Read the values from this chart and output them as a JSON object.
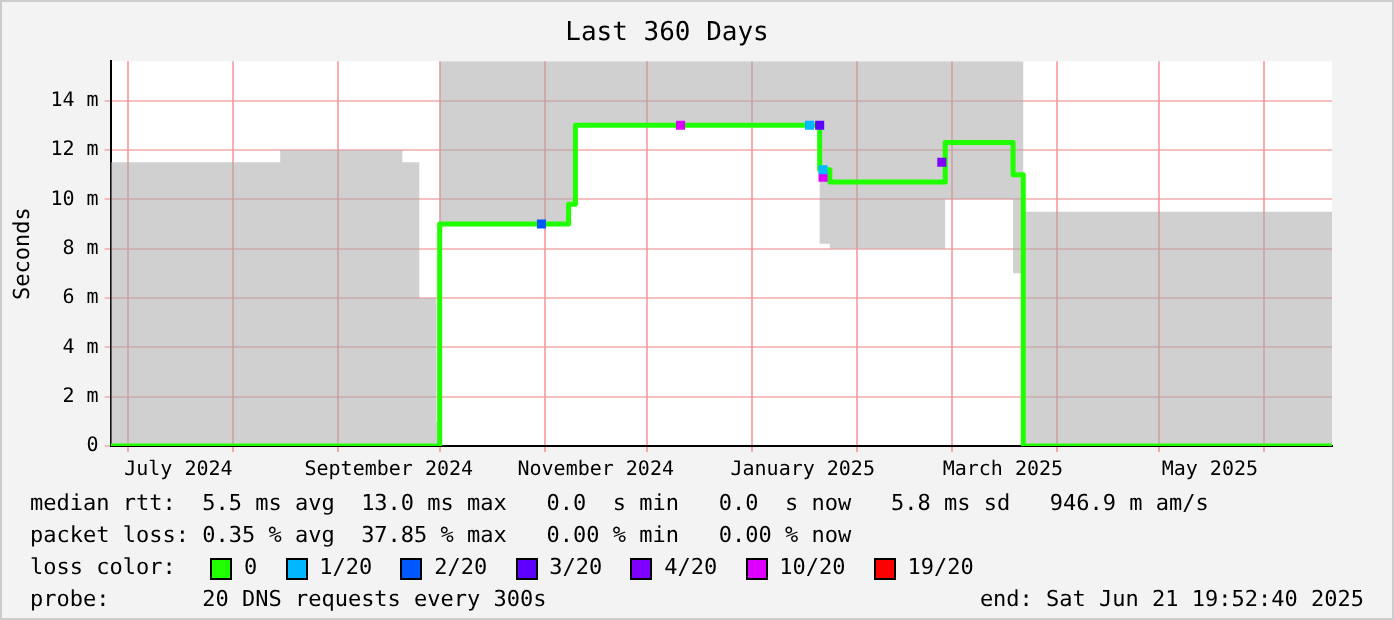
{
  "chart_data": {
    "type": "step",
    "title": "Last 360 Days",
    "ylabel": "Seconds",
    "xlim": [
      "2024-06-26",
      "2025-06-21"
    ],
    "xticks": [
      {
        "value": "2024-07-01",
        "label": null
      },
      {
        "value": "2024-07-16",
        "label": "July 2024"
      },
      {
        "value": "2024-08-01",
        "label": null
      },
      {
        "value": "2024-09-01",
        "label": null
      },
      {
        "value": "2024-09-16",
        "label": "September 2024"
      },
      {
        "value": "2024-10-01",
        "label": null
      },
      {
        "value": "2024-11-01",
        "label": null
      },
      {
        "value": "2024-11-16",
        "label": "November 2024"
      },
      {
        "value": "2024-12-01",
        "label": null
      },
      {
        "value": "2025-01-01",
        "label": null
      },
      {
        "value": "2025-01-16",
        "label": "January 2025"
      },
      {
        "value": "2025-02-01",
        "label": null
      },
      {
        "value": "2025-03-01",
        "label": null
      },
      {
        "value": "2025-03-16",
        "label": "March 2025"
      },
      {
        "value": "2025-04-01",
        "label": null
      },
      {
        "value": "2025-05-01",
        "label": null
      },
      {
        "value": "2025-05-16",
        "label": "May 2025"
      },
      {
        "value": "2025-06-01",
        "label": null
      }
    ],
    "ylim": [
      0,
      15.6
    ],
    "yticks": [
      0,
      {
        "value": 2,
        "label": "2 m"
      },
      {
        "value": 4,
        "label": "4 m"
      },
      {
        "value": 6,
        "label": "6 m"
      },
      {
        "value": 8,
        "label": "8 m"
      },
      {
        "value": 10,
        "label": "10 m"
      },
      {
        "value": 12,
        "label": "12 m"
      },
      {
        "value": 14,
        "label": "14 m"
      }
    ],
    "grid": true,
    "legend": "bottom",
    "legend_title": "loss color:",
    "series": [
      {
        "name": "0",
        "color": "#20ff00",
        "x": [
          "2024-06-26",
          "2024-08-15",
          "2024-09-20",
          "2024-09-25",
          "2024-09-30",
          "2024-10-01",
          "2024-11-08",
          "2024-11-10",
          "2025-01-21",
          "2025-01-24",
          "2025-02-27",
          "2025-03-19",
          "2025-03-22",
          "2025-06-21"
        ],
        "values": [
          0,
          0,
          0,
          0,
          0,
          9,
          9.8,
          13,
          11.2,
          10.7,
          12.3,
          11,
          0,
          0
        ],
        "lower": [
          0,
          0,
          0,
          0,
          0,
          9,
          9.8,
          13,
          8.2,
          8,
          10,
          7,
          0,
          0
        ],
        "upper": [
          11.5,
          12,
          11.5,
          6,
          1,
          15.6,
          15.6,
          15.6,
          15.6,
          15.6,
          15.6,
          15.6,
          9.5,
          9.5
        ]
      },
      {
        "name": "1/20",
        "type": "scatter",
        "color": "#00b8ff",
        "x": [
          "2025-01-18",
          "2025-01-22"
        ],
        "values": [
          13,
          11.2
        ]
      },
      {
        "name": "2/20",
        "type": "scatter",
        "color": "#0059ff",
        "x": [
          "2024-10-31"
        ],
        "values": [
          9
        ]
      },
      {
        "name": "3/20",
        "type": "scatter",
        "color": "#5e00ff",
        "x": [
          "2025-01-21"
        ],
        "values": [
          13
        ]
      },
      {
        "name": "4/20",
        "type": "scatter",
        "color": "#7e00ff",
        "x": [
          "2025-02-26"
        ],
        "values": [
          11.5
        ]
      },
      {
        "name": "10/20",
        "type": "scatter",
        "color": "#dd00ff",
        "x": [
          "2024-12-11",
          "2025-01-22"
        ],
        "values": [
          13,
          10.9
        ]
      },
      {
        "name": "19/20",
        "type": "scatter",
        "color": "#ff0000"
      }
    ],
    "annotations": [
      "median rtt:  5.5 ms avg  13.0 ms max   0.0  s min   0.0  s now   5.8 ms sd   946.9 m am/s",
      "packet loss: 0.35 % avg  37.85 % max   0.00 % min   0.00 % now",
      "probe:       20 DNS requests every 300s",
      "end: Sat Jun 21 19:52:40 2025"
    ]
  }
}
